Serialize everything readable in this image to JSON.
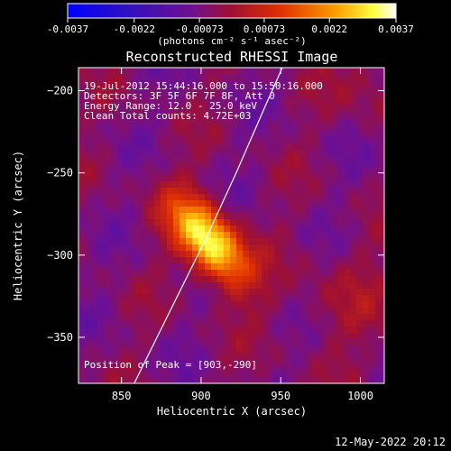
{
  "colorbar": {
    "tick_labels": [
      "-0.0037",
      "-0.0022",
      "-0.00073",
      "0.00073",
      "0.0022",
      "0.0037"
    ],
    "ticks": [
      -0.0037,
      -0.0022,
      -0.00073,
      0.00073,
      0.0022,
      0.0037
    ],
    "range": [
      -0.0037,
      0.0037
    ],
    "units_label": "(photons cm⁻² s⁻¹ asec⁻²)"
  },
  "chart_data": {
    "type": "heatmap",
    "title": "Reconstructed RHESSI Image",
    "xlabel": "Heliocentric X (arcsec)",
    "ylabel": "Heliocentric Y (arcsec)",
    "xlim": [
      823,
      1015
    ],
    "ylim": [
      -378,
      -186
    ],
    "x_ticks": [
      850,
      900,
      950,
      1000
    ],
    "y_ticks": [
      -200,
      -250,
      -300,
      -350
    ],
    "x_tick_labels": [
      "850",
      "900",
      "950",
      "1000"
    ],
    "y_tick_labels": [
      "−200",
      "−250",
      "−300",
      "−350"
    ],
    "annotations": {
      "time": "19-Jul-2012 15:44:16.000 to 15:50:16.000",
      "detectors": "Detectors: 3F 5F 6F 7F 8F, Att 0",
      "energy": "Energy Range: 12.0 - 25.0 keV",
      "clean": "Clean    Total counts: 4.72E+03",
      "peak": "Position of Peak = [903,-290]"
    },
    "peak": {
      "x": 903,
      "y": -290
    },
    "limb_points": [
      [
        858,
        -378
      ],
      [
        880,
        -335
      ],
      [
        903,
        -290
      ],
      [
        922,
        -250
      ],
      [
        940,
        -210
      ],
      [
        951,
        -186
      ]
    ]
  },
  "footer": {
    "timestamp": "12-May-2022 20:12"
  }
}
